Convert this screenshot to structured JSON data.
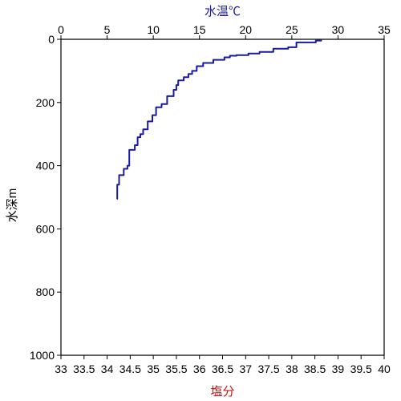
{
  "chart_data": {
    "type": "line",
    "title": "",
    "x_top": {
      "label": "水温℃",
      "range": [
        0,
        35
      ],
      "ticks": [
        0,
        5,
        10,
        15,
        20,
        25,
        30,
        35
      ],
      "tick_labels": [
        "0",
        "5",
        "10",
        "15",
        "20",
        "25",
        "30",
        "35"
      ],
      "label_color": "#1a1aa8"
    },
    "x_bottom": {
      "label": "塩分",
      "range": [
        33,
        40
      ],
      "ticks": [
        33,
        33.5,
        34,
        34.5,
        35,
        35.5,
        36,
        36.5,
        37,
        37.5,
        38,
        38.5,
        39,
        39.5,
        40
      ],
      "tick_labels": [
        "33",
        "33.5",
        "34",
        "34.5",
        "35",
        "35.5",
        "36",
        "36.5",
        "37",
        "37.5",
        "38",
        "38.5",
        "39",
        "39.5",
        "40"
      ],
      "label_color": "#c81414"
    },
    "y": {
      "label": "水深m",
      "range": [
        0,
        1000
      ],
      "inverted": true,
      "ticks": [
        0,
        200,
        400,
        600,
        800,
        1000
      ],
      "tick_labels": [
        "0",
        "200",
        "400",
        "600",
        "800",
        "1000"
      ]
    },
    "grid": false,
    "legend": "none",
    "series": [
      {
        "axis": "x_top",
        "color": "#1a1aa8",
        "x": [
          28.2,
          27.6,
          25.5,
          24.6,
          23.0,
          21.5,
          20.3,
          19.0,
          18.3,
          17.7,
          16.5,
          15.4,
          14.7,
          14.2,
          13.8,
          13.3,
          12.7,
          12.5,
          12.2,
          11.5,
          10.9,
          10.3,
          9.9,
          9.4,
          8.9,
          8.6,
          8.3,
          8.0,
          7.4,
          7.2,
          6.8,
          6.3,
          6.1
        ],
        "y": [
          4,
          10,
          25,
          30,
          40,
          45,
          50,
          52,
          57,
          65,
          75,
          85,
          100,
          110,
          120,
          130,
          145,
          160,
          180,
          205,
          215,
          240,
          260,
          285,
          300,
          310,
          335,
          350,
          400,
          410,
          430,
          460,
          505
        ]
      }
    ]
  }
}
